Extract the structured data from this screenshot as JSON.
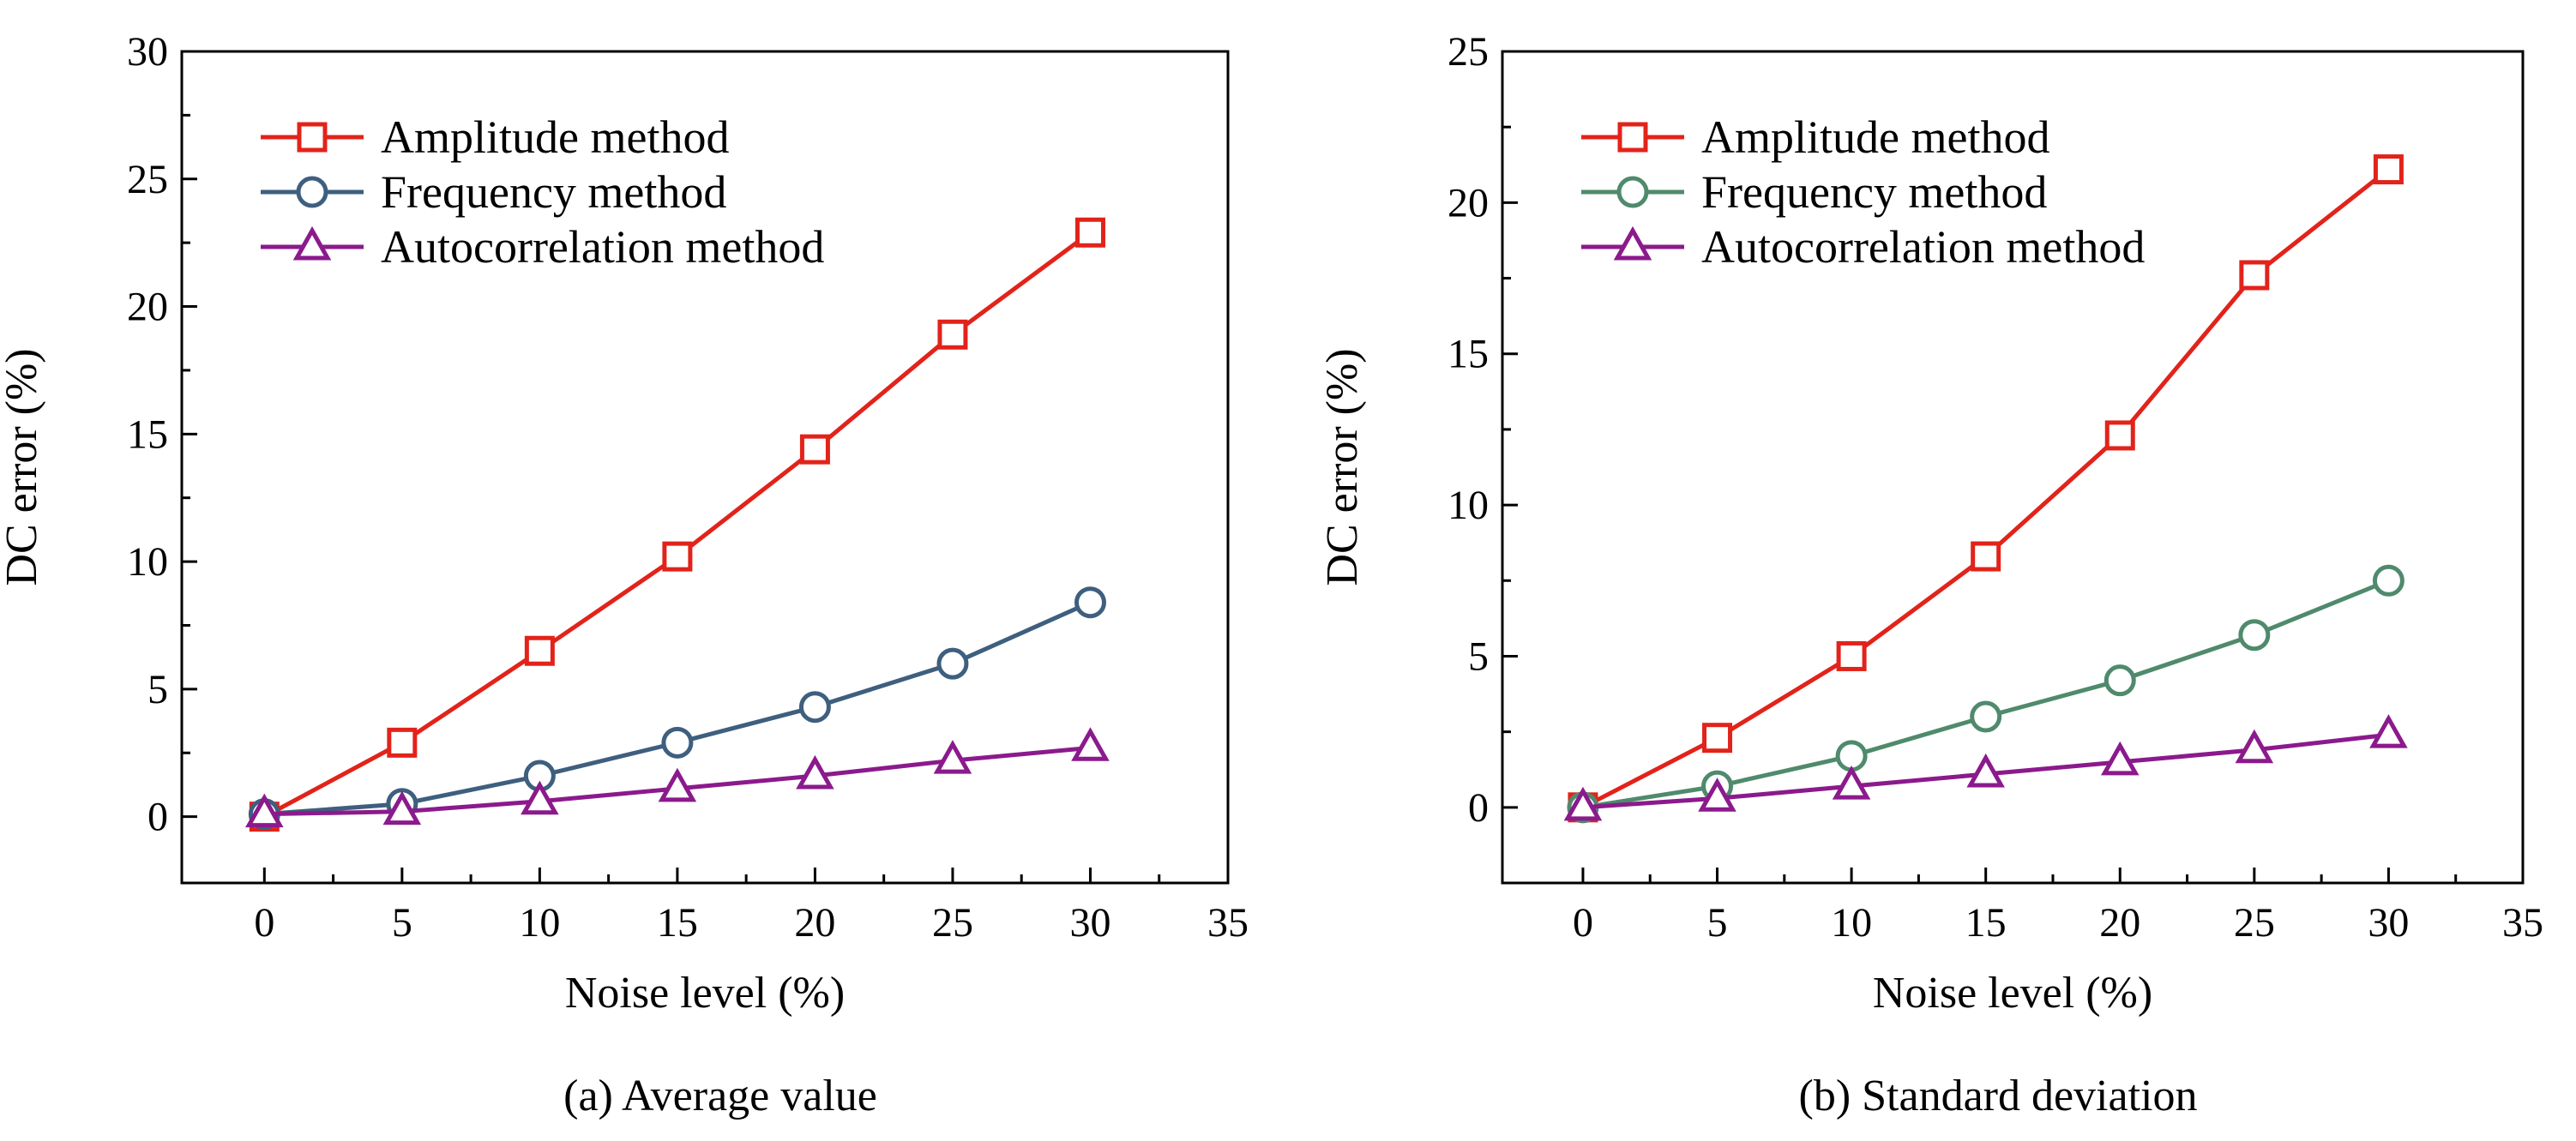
{
  "chart_data": [
    {
      "id": "a",
      "type": "line",
      "caption": "(a) Average value",
      "xlabel": "Noise level (%)",
      "ylabel": "DC error (%)",
      "xlim": [
        -3,
        35
      ],
      "ylim": [
        -2.6,
        30
      ],
      "xticks": [
        0,
        5,
        10,
        15,
        20,
        25,
        30,
        35
      ],
      "yticks": [
        0,
        5,
        10,
        15,
        20,
        25,
        30
      ],
      "legend_position": "top-left",
      "x": [
        0,
        5,
        10,
        15,
        20,
        25,
        30
      ],
      "series": [
        {
          "name": "Amplitude method",
          "color": "#e2231a",
          "marker": "square",
          "values": [
            0,
            2.9,
            6.5,
            10.2,
            14.4,
            18.9,
            22.9
          ]
        },
        {
          "name": "Frequency method",
          "color": "#3e5f7e",
          "marker": "circle",
          "values": [
            0.1,
            0.5,
            1.6,
            2.9,
            4.3,
            6.0,
            8.4
          ]
        },
        {
          "name": "Autocorrelation method",
          "color": "#8b1a8c",
          "marker": "triangle",
          "values": [
            0.1,
            0.2,
            0.6,
            1.1,
            1.6,
            2.2,
            2.7
          ]
        }
      ]
    },
    {
      "id": "b",
      "type": "line",
      "caption": "(b) Standard deviation",
      "xlabel": "Noise level (%)",
      "ylabel": "DC error (%)",
      "xlim": [
        -3,
        35
      ],
      "ylim": [
        -2.5,
        25
      ],
      "xticks": [
        0,
        5,
        10,
        15,
        20,
        25,
        30,
        35
      ],
      "yticks": [
        0,
        5,
        10,
        15,
        20,
        25
      ],
      "legend_position": "top-left",
      "x": [
        0,
        5,
        10,
        15,
        20,
        25,
        30
      ],
      "series": [
        {
          "name": "Amplitude method",
          "color": "#e2231a",
          "marker": "square",
          "values": [
            0,
            2.3,
            5.0,
            8.3,
            12.3,
            17.6,
            21.1
          ]
        },
        {
          "name": "Frequency method",
          "color": "#4f8a6c",
          "marker": "circle",
          "values": [
            0,
            0.7,
            1.7,
            3.0,
            4.2,
            5.7,
            7.5
          ]
        },
        {
          "name": "Autocorrelation method",
          "color": "#8b1a8c",
          "marker": "triangle",
          "values": [
            0,
            0.3,
            0.7,
            1.1,
            1.5,
            1.9,
            2.4
          ]
        }
      ]
    }
  ]
}
